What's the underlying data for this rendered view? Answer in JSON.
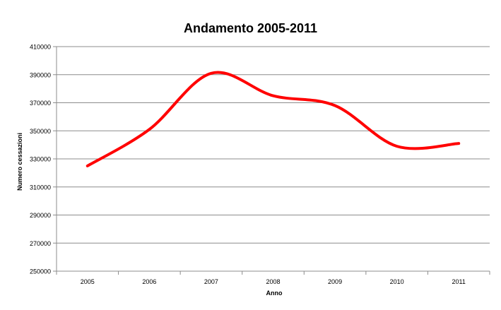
{
  "chart_data": {
    "type": "line",
    "title": "Andamento 2005-2011",
    "xlabel": "Anno",
    "ylabel": "Numero cessazioni",
    "categories": [
      "2005",
      "2006",
      "2007",
      "2008",
      "2009",
      "2010",
      "2011"
    ],
    "series": [
      {
        "values": [
          325000,
          351000,
          391000,
          375000,
          368000,
          339000,
          341000
        ],
        "color": "#ff0000"
      }
    ],
    "yticks": [
      "250000",
      "270000",
      "290000",
      "310000",
      "330000",
      "350000",
      "370000",
      "390000",
      "410000"
    ],
    "ylim": [
      250000,
      410000
    ],
    "grid": true,
    "legend": "none",
    "smooth": true
  }
}
